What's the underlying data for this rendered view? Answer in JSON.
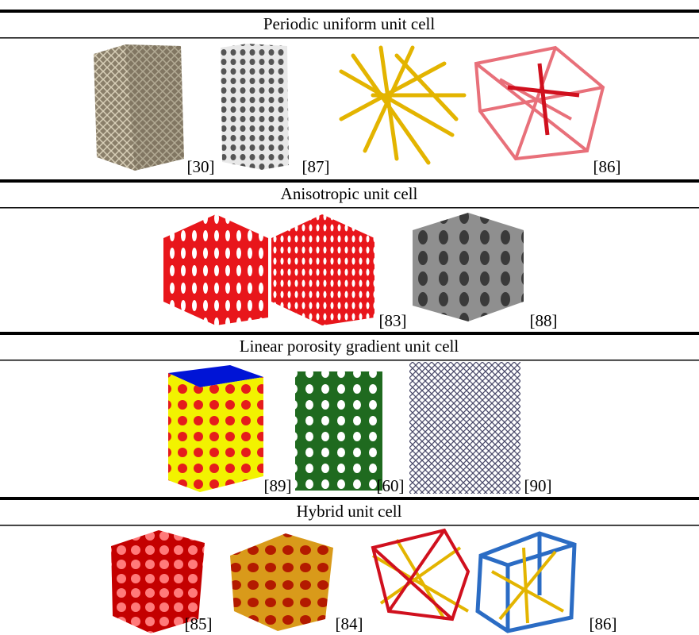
{
  "sections": [
    {
      "title": "Periodic uniform unit cell",
      "refs": [
        "[30]",
        "[87]",
        "[86]"
      ]
    },
    {
      "title": "Anisotropic unit cell",
      "refs": [
        "[83]",
        "[88]"
      ]
    },
    {
      "title": "Linear porosity gradient unit cell",
      "refs": [
        "[89]",
        "[60]",
        "[90]"
      ]
    },
    {
      "title": "Hybrid unit cell",
      "refs": [
        "[85]",
        "[84]",
        "[86]"
      ]
    }
  ]
}
